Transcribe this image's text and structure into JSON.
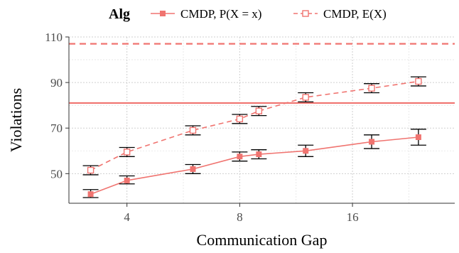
{
  "chart_data": {
    "type": "line",
    "xlabel": "Communication Gap",
    "ylabel": "Violations",
    "x_scale": "log2",
    "xlim": [
      2.8,
      30
    ],
    "ylim": [
      37,
      110
    ],
    "x_ticks": [
      4,
      8,
      16
    ],
    "x_tick_labels": [
      "4",
      "8",
      "16"
    ],
    "y_ticks": [
      50,
      70,
      90,
      110
    ],
    "y_tick_labels": [
      "50",
      "70",
      "90",
      "110"
    ],
    "grid": true,
    "legend": {
      "title": "Alg",
      "placement": "top",
      "entries": [
        "CMDP, P(X = x)",
        "CMDP, E(X)"
      ]
    },
    "series": [
      {
        "name": "CMDP, P(X = x)",
        "line_style": "solid",
        "marker": "filled-square",
        "color": "#f07470",
        "x": [
          3.2,
          4,
          6,
          8,
          9,
          12,
          18,
          24
        ],
        "y": [
          41,
          47,
          52,
          57.5,
          58.5,
          60,
          64,
          66
        ],
        "err_low": [
          39.5,
          45.5,
          50,
          55.5,
          56.5,
          57.5,
          61,
          62.5
        ],
        "err_high": [
          43,
          49,
          54,
          59.5,
          60.5,
          62.5,
          67,
          69.5
        ]
      },
      {
        "name": "CMDP, E(X)",
        "line_style": "dashed",
        "marker": "open-square",
        "color": "#f07470",
        "x": [
          3.2,
          4,
          6,
          8,
          9,
          12,
          18,
          24
        ],
        "y": [
          51.5,
          59.5,
          69,
          74,
          77.5,
          83.5,
          87.5,
          90.5
        ],
        "err_low": [
          49.5,
          57.5,
          67,
          72,
          75.5,
          81.5,
          85.5,
          88.5
        ],
        "err_high": [
          53.5,
          61.5,
          71,
          76,
          79.5,
          85.5,
          89.5,
          92.5
        ]
      }
    ],
    "reference_lines": [
      {
        "y": 81,
        "style": "solid",
        "color": "#f07470"
      },
      {
        "y": 107,
        "style": "dashed",
        "color": "#f07470"
      }
    ]
  }
}
